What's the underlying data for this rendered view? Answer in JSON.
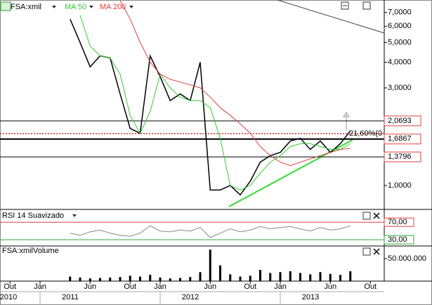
{
  "chart_data": [
    {
      "type": "line",
      "log_scale": true,
      "x": [
        "2011-04",
        "2011-05",
        "2011-06",
        "2011-07",
        "2011-08",
        "2011-09",
        "2011-10",
        "2011-11",
        "2011-12",
        "2012-01",
        "2012-02",
        "2012-03",
        "2012-04",
        "2012-05",
        "2012-06",
        "2012-07",
        "2012-08",
        "2012-09",
        "2012-10",
        "2012-11",
        "2012-12",
        "2013-01",
        "2013-02",
        "2013-03",
        "2013-04",
        "2013-05",
        "2013-06",
        "2013-07",
        "2013-08"
      ],
      "series": [
        {
          "name": "FSA:xmil",
          "color": "#000000",
          "values": [
            6.5,
            5.0,
            3.8,
            4.3,
            4.2,
            2.8,
            1.9,
            1.8,
            4.3,
            3.4,
            2.6,
            2.8,
            2.6,
            4.0,
            0.95,
            0.95,
            1.0,
            0.9,
            1.05,
            1.3,
            1.4,
            1.45,
            1.65,
            1.7,
            1.5,
            1.65,
            1.45,
            1.6,
            1.85
          ]
        },
        {
          "name": "MA 50",
          "color": "#33cc33",
          "values": [
            null,
            6.8,
            4.8,
            4.3,
            4.2,
            3.5,
            2.2,
            1.8,
            2.3,
            3.5,
            3.0,
            2.7,
            2.6,
            2.6,
            2.4,
            1.7,
            1.0,
            0.95,
            1.0,
            1.15,
            1.3,
            1.4,
            1.55,
            1.6,
            1.6,
            1.55,
            1.5,
            1.5,
            1.6
          ]
        },
        {
          "name": "MA 200",
          "color": "#e04040",
          "values": [
            null,
            null,
            null,
            null,
            null,
            8.0,
            6.5,
            5.0,
            4.0,
            3.5,
            3.3,
            3.2,
            3.1,
            3.0,
            2.7,
            2.4,
            2.2,
            2.0,
            1.8,
            1.55,
            1.4,
            1.3,
            1.25,
            1.3,
            1.35,
            1.4,
            1.45,
            1.5,
            1.52
          ]
        }
      ],
      "ylim": [
        0.776,
        8.06
      ],
      "yticks": [
        {
          "value": 1,
          "label": "1,0000"
        },
        {
          "value": 3,
          "label": "3,0000"
        },
        {
          "value": 4,
          "label": "4,0000"
        },
        {
          "value": 5,
          "label": "5,0000"
        },
        {
          "value": 6,
          "label": "6,0000"
        },
        {
          "value": 7,
          "label": "7,0000"
        }
      ],
      "price_lines": [
        {
          "value": 2.0693,
          "label": "2,0693"
        },
        {
          "value": 1.6867,
          "label": "1,6867"
        },
        {
          "value": 1.3796,
          "label": "1,3796"
        }
      ],
      "fib_line": {
        "value": 1.79,
        "label": "21,60%(0"
      },
      "xlim": [
        "2010-09",
        "2013-11"
      ],
      "xticks": [
        {
          "value": "2010-10",
          "label": "Out"
        },
        {
          "value": "2011-01",
          "label": "Jan"
        },
        {
          "value": "2011-06",
          "label": "Jun"
        },
        {
          "value": "2011-10",
          "label": "Out"
        },
        {
          "value": "2012-01",
          "label": "Jan"
        },
        {
          "value": "2012-06",
          "label": "Jun"
        },
        {
          "value": "2012-10",
          "label": "Out"
        },
        {
          "value": "2013-01",
          "label": "Jan"
        },
        {
          "value": "2013-06",
          "label": "Jun"
        },
        {
          "value": "2013-10",
          "label": "Out"
        }
      ],
      "year_ticks": [
        2010,
        2011,
        2012,
        2013
      ]
    },
    {
      "type": "line",
      "title": "RSI 14 Suavizado",
      "color": "#888888",
      "values": [
        45,
        40,
        48,
        52,
        45,
        40,
        38,
        45,
        62,
        50,
        48,
        52,
        50,
        58,
        35,
        45,
        55,
        48,
        52,
        60,
        55,
        58,
        60,
        55,
        50,
        58,
        52,
        55,
        62
      ],
      "ylim": [
        19,
        96
      ],
      "yticks": [
        {
          "value": 70,
          "label": "70,00"
        },
        {
          "value": 30,
          "label": "30,00"
        }
      ]
    },
    {
      "type": "bar",
      "title": "FSA:xmilVolume",
      "color": "#000000",
      "values": [
        10000000,
        8000000,
        6000000,
        7000000,
        8000000,
        9000000,
        12000000,
        10000000,
        14000000,
        8000000,
        6000000,
        7000000,
        9000000,
        20000000,
        70000000,
        35000000,
        15000000,
        10000000,
        12000000,
        25000000,
        18000000,
        20000000,
        22000000,
        18000000,
        15000000,
        20000000,
        16000000,
        14000000,
        22000000
      ],
      "ylim": [
        0,
        75000000
      ],
      "yticks": [
        {
          "value": 50000000,
          "label": "50.000.000"
        }
      ]
    }
  ]
}
